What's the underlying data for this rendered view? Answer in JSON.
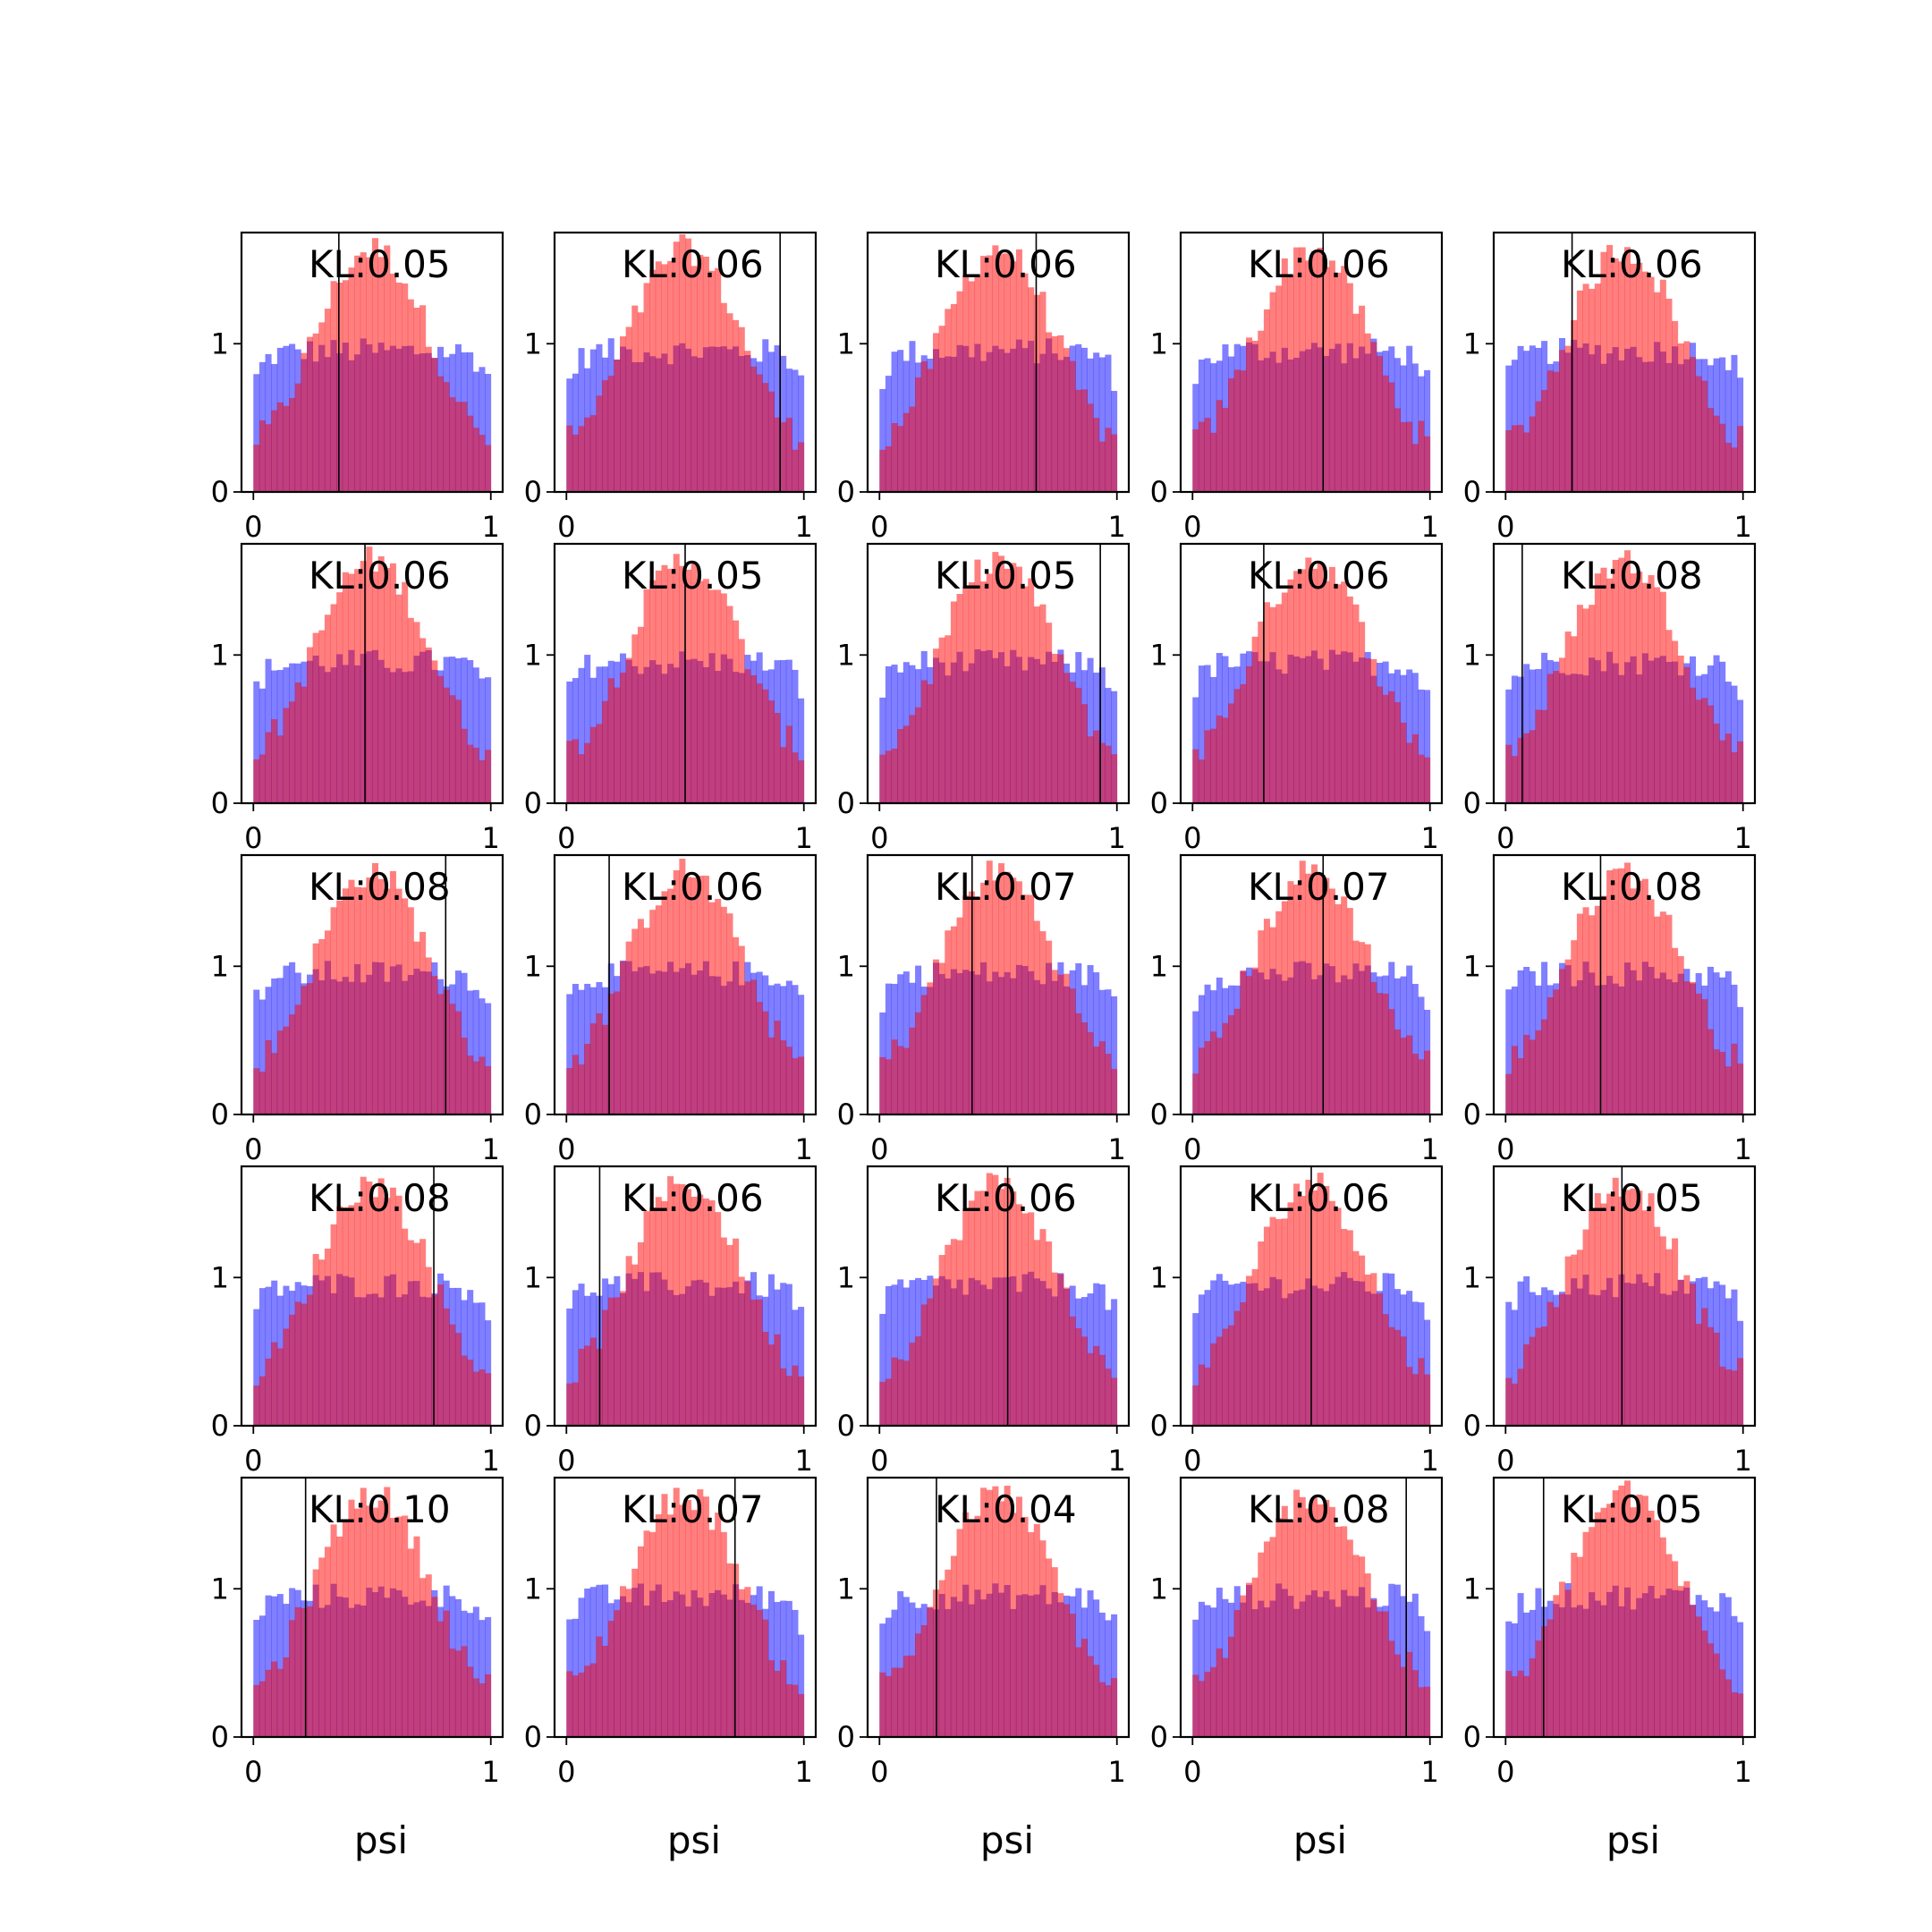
{
  "figure": {
    "xlabel": "psi",
    "xtick_labels": [
      "0",
      "1"
    ],
    "ytick_labels": [
      "0",
      "1"
    ],
    "colors": {
      "hist_a": "#0000ff",
      "hist_b": "#ff0000",
      "hist_alpha": 0.5,
      "vline": "#000000"
    }
  },
  "chart_data": {
    "type": "histogram-grid",
    "rows": 5,
    "cols": 5,
    "xlim": [
      -0.05,
      1.05
    ],
    "ylim": [
      0,
      1.75
    ],
    "bins": 40,
    "xlabel": "psi",
    "series": [
      {
        "color": "blue",
        "description": "wide, roughly flat distribution (~0.9-1.0 density, lower at the edges)"
      },
      {
        "color": "red",
        "description": "peaked distribution centred near 0.5 (~1.5 density, ~0.35 at the edges)"
      }
    ],
    "panels": [
      {
        "kl_label": "KL:0.05",
        "vline_x": 0.36
      },
      {
        "kl_label": "KL:0.06",
        "vline_x": 0.9
      },
      {
        "kl_label": "KL:0.06",
        "vline_x": 0.66
      },
      {
        "kl_label": "KL:0.06",
        "vline_x": 0.55
      },
      {
        "kl_label": "KL:0.06",
        "vline_x": 0.28
      },
      {
        "kl_label": "KL:0.06",
        "vline_x": 0.47
      },
      {
        "kl_label": "KL:0.05",
        "vline_x": 0.5
      },
      {
        "kl_label": "KL:0.05",
        "vline_x": 0.93
      },
      {
        "kl_label": "KL:0.06",
        "vline_x": 0.3
      },
      {
        "kl_label": "KL:0.08",
        "vline_x": 0.07
      },
      {
        "kl_label": "KL:0.08",
        "vline_x": 0.81
      },
      {
        "kl_label": "KL:0.06",
        "vline_x": 0.18
      },
      {
        "kl_label": "KL:0.07",
        "vline_x": 0.39
      },
      {
        "kl_label": "KL:0.07",
        "vline_x": 0.55
      },
      {
        "kl_label": "KL:0.08",
        "vline_x": 0.4
      },
      {
        "kl_label": "KL:0.08",
        "vline_x": 0.76
      },
      {
        "kl_label": "KL:0.06",
        "vline_x": 0.14
      },
      {
        "kl_label": "KL:0.06",
        "vline_x": 0.54
      },
      {
        "kl_label": "KL:0.06",
        "vline_x": 0.5
      },
      {
        "kl_label": "KL:0.05",
        "vline_x": 0.49
      },
      {
        "kl_label": "KL:0.10",
        "vline_x": 0.22
      },
      {
        "kl_label": "KL:0.07",
        "vline_x": 0.71
      },
      {
        "kl_label": "KL:0.04",
        "vline_x": 0.24
      },
      {
        "kl_label": "KL:0.08",
        "vline_x": 0.9
      },
      {
        "kl_label": "KL:0.05",
        "vline_x": 0.16
      }
    ]
  }
}
